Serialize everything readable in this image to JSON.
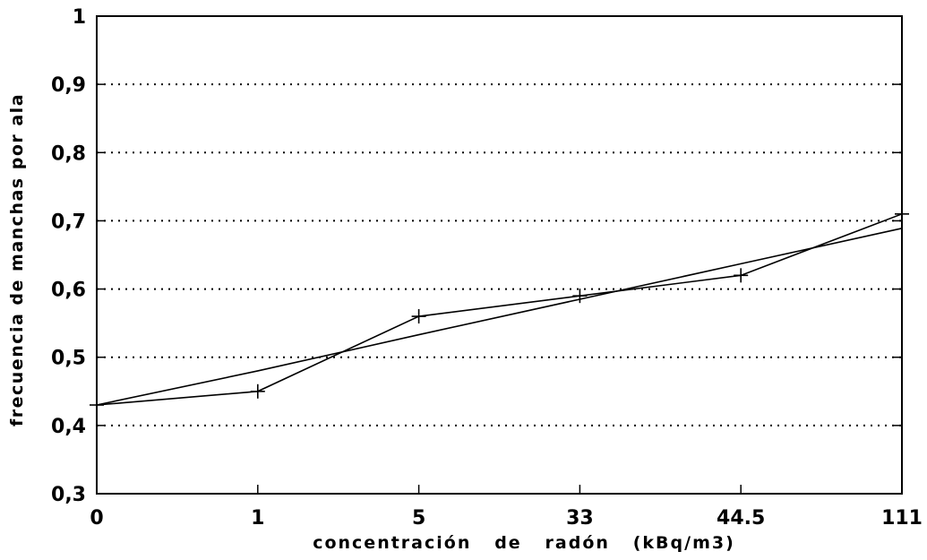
{
  "chart_data": {
    "type": "line",
    "title": "",
    "xlabel": "concentración   de   radón   (kBq/m3)",
    "ylabel": "frecuencia de manchas por ala",
    "categories": [
      "0",
      "1",
      "5",
      "33",
      "44.5",
      "111"
    ],
    "ylim": [
      0.3,
      1.0
    ],
    "yticks": [
      "0,3",
      "0,4",
      "0,5",
      "0,6",
      "0,7",
      "0,8",
      "0,9",
      "1"
    ],
    "ytick_values": [
      0.3,
      0.4,
      0.5,
      0.6,
      0.7,
      0.8,
      0.9,
      1.0
    ],
    "grid": "horizontal-dotted",
    "series": [
      {
        "marker": "+",
        "values": [
          0.43,
          0.45,
          0.56,
          0.59,
          0.62,
          0.71
        ]
      },
      {
        "marker": "none",
        "values": [
          0.43,
          0.48,
          0.533,
          0.585,
          0.637,
          0.689
        ]
      }
    ]
  }
}
